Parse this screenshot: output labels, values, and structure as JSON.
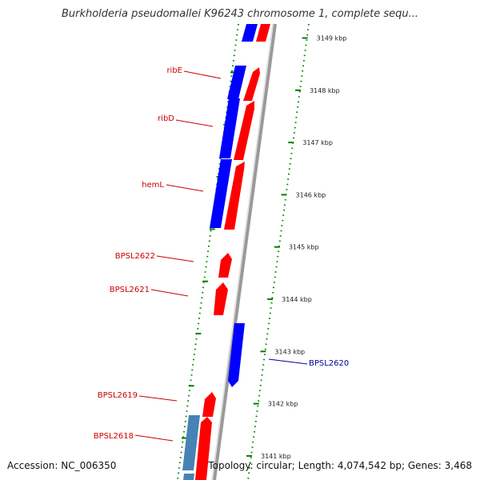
{
  "title": "Burkholderia pseudomallei K96243 chromosome 1, complete sequ...",
  "accession": "Accession: NC_006350",
  "topology": "Topology: circular; Length: 4,074,542 bp; Genes: 3,468",
  "colors": {
    "forward": "#ff0000",
    "reverse": "#0000ff",
    "reverse_alt": "#4682b4",
    "backbone": "#999999",
    "ticks": "#008000",
    "label_forward": "#cc0000",
    "label_reverse": "#000099"
  },
  "ticks": [
    {
      "label": "3149 kbp"
    },
    {
      "label": "3148 kbp"
    },
    {
      "label": "3147 kbp"
    },
    {
      "label": "3146 kbp"
    },
    {
      "label": "3145 kbp"
    },
    {
      "label": "3144 kbp"
    },
    {
      "label": "3143 kbp"
    },
    {
      "label": "3142 kbp"
    },
    {
      "label": "3141 kbp"
    }
  ],
  "genes": [
    {
      "name": "ribE",
      "strand": "-"
    },
    {
      "name": "ribD",
      "strand": "-"
    },
    {
      "name": "hemL",
      "strand": "-"
    },
    {
      "name": "BPSL2622",
      "strand": "+"
    },
    {
      "name": "BPSL2621",
      "strand": "+"
    },
    {
      "name": "BPSL2620",
      "strand": "-"
    },
    {
      "name": "BPSL2619",
      "strand": "+"
    },
    {
      "name": "BPSL2618",
      "strand": "+"
    }
  ]
}
